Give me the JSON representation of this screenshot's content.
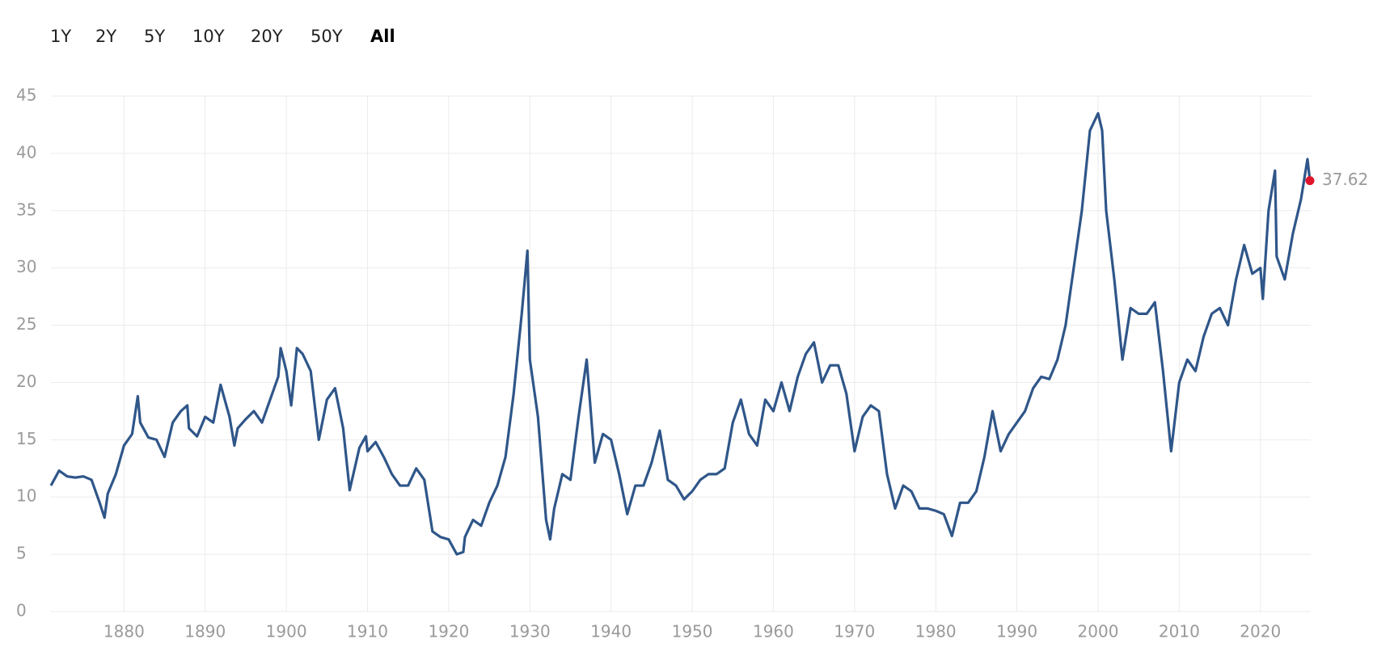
{
  "ranges": [
    "1Y",
    "2Y",
    "5Y",
    "10Y",
    "20Y",
    "50Y",
    "All"
  ],
  "selected_range": 6,
  "chart_data": {
    "type": "line",
    "color": "#2f5689",
    "marker_color": "#e0162b",
    "grid": true,
    "xlim": [
      1871,
      2026.2
    ],
    "ylim": [
      0,
      45
    ],
    "xticks": [
      1880,
      1890,
      1900,
      1910,
      1920,
      1930,
      1940,
      1950,
      1960,
      1970,
      1980,
      1990,
      2000,
      2010,
      2020
    ],
    "yticks": [
      0,
      5,
      10,
      15,
      20,
      25,
      30,
      35,
      40,
      45
    ],
    "x": [
      1871,
      1872,
      1873,
      1874,
      1875,
      1876,
      1877,
      1877.6,
      1878,
      1879,
      1880,
      1881,
      1881.7,
      1882,
      1883,
      1884,
      1885,
      1886,
      1887,
      1887.8,
      1888,
      1889,
      1890,
      1891,
      1891.9,
      1893,
      1893.6,
      1894,
      1895,
      1896,
      1897,
      1898,
      1899,
      1899.3,
      1900,
      1900.6,
      1901.3,
      1902,
      1903,
      1904,
      1905,
      1906,
      1907,
      1907.8,
      1909,
      1909.8,
      1910,
      1911,
      1912,
      1913,
      1914,
      1915,
      1916,
      1917,
      1918,
      1919,
      1920,
      1921,
      1921.8,
      1922,
      1923,
      1924,
      1925,
      1926,
      1927,
      1928,
      1929,
      1929.7,
      1930,
      1931,
      1932,
      1932.5,
      1933,
      1934,
      1935,
      1936,
      1937,
      1938,
      1939,
      1940,
      1941,
      1942,
      1943,
      1944,
      1945,
      1946,
      1947,
      1948,
      1949,
      1950,
      1951,
      1952,
      1953,
      1954,
      1955,
      1956,
      1957,
      1958,
      1959,
      1960,
      1961,
      1962,
      1963,
      1964,
      1965,
      1966,
      1967,
      1968,
      1969,
      1970,
      1971,
      1972,
      1973,
      1974,
      1975,
      1976,
      1977,
      1978,
      1979,
      1980,
      1981,
      1982,
      1983,
      1984,
      1985,
      1986,
      1987,
      1988,
      1989,
      1990,
      1991,
      1992,
      1993,
      1994,
      1995,
      1996,
      1997,
      1998,
      1999,
      2000,
      2000.5,
      2001,
      2002,
      2003,
      2004,
      2005,
      2006,
      2007,
      2008,
      2009,
      2010,
      2011,
      2012,
      2013,
      2014,
      2015,
      2016,
      2017,
      2018,
      2019,
      2020,
      2020.3,
      2021,
      2021.8,
      2022,
      2023,
      2024,
      2025,
      2025.8,
      2026.1
    ],
    "values": [
      11,
      12.3,
      11.8,
      11.7,
      11.8,
      11.5,
      9.5,
      8.2,
      10.3,
      12,
      14.5,
      15.5,
      18.8,
      16.5,
      15.2,
      15,
      13.5,
      16.5,
      17.5,
      18,
      16,
      15.3,
      17,
      16.5,
      19.8,
      17,
      14.5,
      16,
      16.8,
      17.5,
      16.5,
      18.5,
      20.5,
      23,
      21,
      18,
      23,
      22.5,
      21,
      15,
      18.5,
      19.5,
      16,
      10.6,
      14.3,
      15.3,
      14,
      14.8,
      13.5,
      12,
      11,
      11,
      12.5,
      11.5,
      7,
      6.5,
      6.3,
      5,
      5.2,
      6.5,
      8,
      7.5,
      9.5,
      11,
      13.5,
      19,
      26,
      31.5,
      22,
      17,
      8,
      6.3,
      9,
      12,
      11.5,
      17,
      22,
      13,
      15.5,
      15,
      12,
      8.5,
      11,
      11,
      13,
      15.8,
      11.5,
      11,
      9.8,
      10.5,
      11.5,
      12,
      12,
      12.5,
      16.5,
      18.5,
      15.5,
      14.5,
      18.5,
      17.5,
      20,
      17.5,
      20.5,
      22.5,
      23.5,
      20,
      21.5,
      21.5,
      19,
      14,
      17,
      18,
      17.5,
      12,
      9,
      11,
      10.5,
      9,
      9,
      8.8,
      8.5,
      6.6,
      9.5,
      9.5,
      10.5,
      13.5,
      17.5,
      14,
      15.5,
      16.5,
      17.5,
      19.5,
      20.5,
      20.3,
      22,
      25,
      30,
      35,
      42,
      43.5,
      42,
      35,
      29,
      22,
      26.5,
      26,
      26,
      27,
      21,
      14,
      20,
      22,
      21,
      24,
      26,
      26.5,
      25,
      29,
      32,
      29.5,
      30,
      27.3,
      35,
      38.5,
      31,
      29,
      33,
      36,
      39.5,
      37.62
    ]
  }
}
